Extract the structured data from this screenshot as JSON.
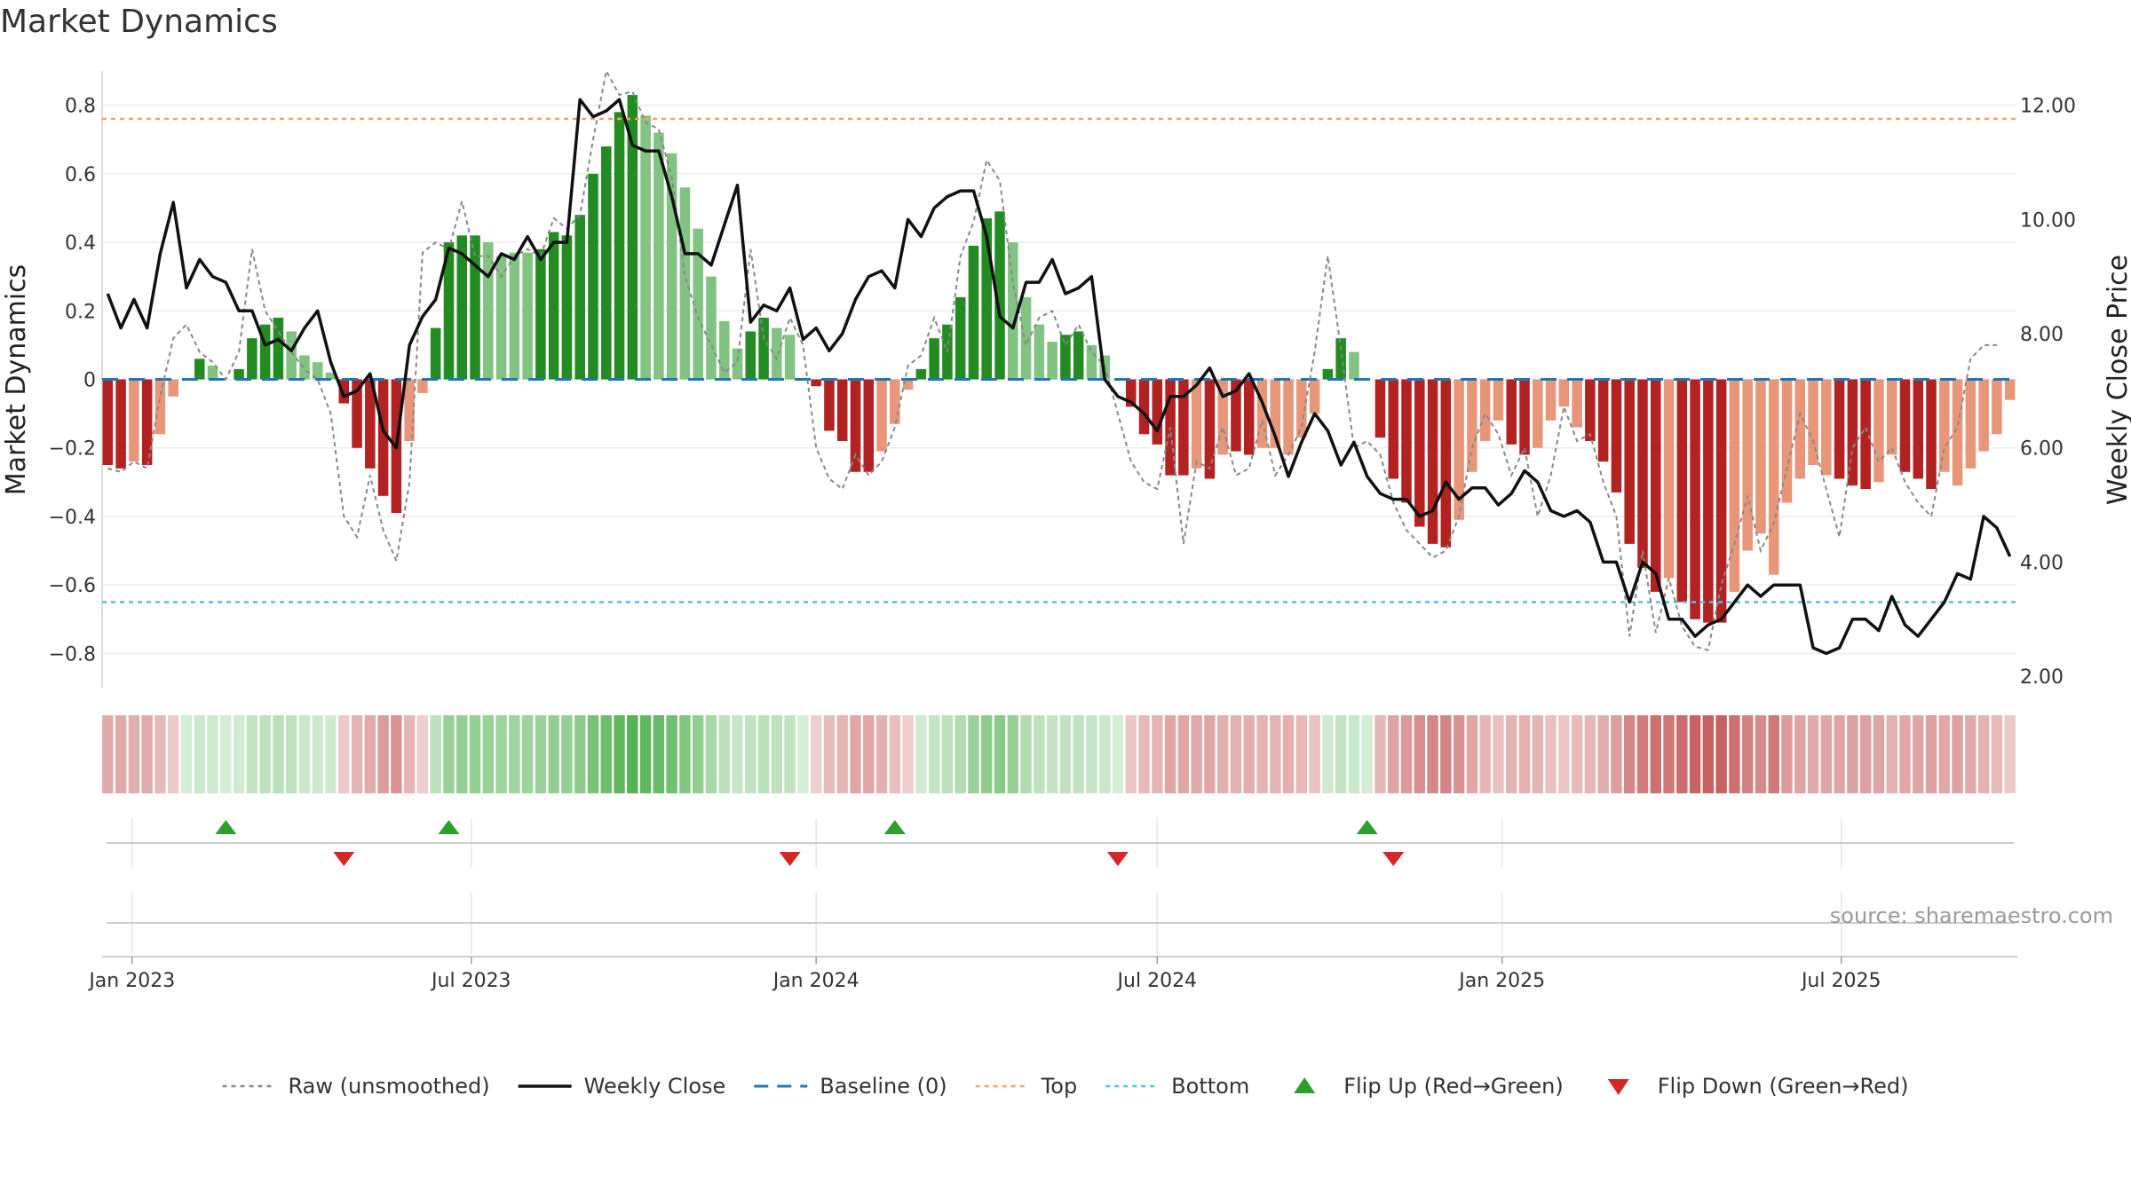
{
  "title": "Market Dynamics",
  "source": "source: sharemaestro.com",
  "colors": {
    "strong_green": "#228b22",
    "light_green": "#82c282",
    "strong_red": "#b22222",
    "light_red": "#e8967a",
    "close": "#111111",
    "raw": "#888888",
    "baseline": "#1f77b4",
    "top": "#f4a261",
    "bottom": "#4fc3e0",
    "flip_up": "#2ca02c",
    "flip_down": "#d62728"
  },
  "chart_data": {
    "type": "bar",
    "title": "Market Dynamics",
    "ylabel": "Market Dynamics",
    "y2label": "Weekly Close Price",
    "ylim": [
      -0.9,
      0.9
    ],
    "y2lim": [
      1.8,
      12.6
    ],
    "y_ticks": [
      -0.8,
      -0.6,
      -0.4,
      -0.2,
      0,
      0.2,
      0.4,
      0.6,
      0.8
    ],
    "y_tick_labels": [
      "−0.8",
      "−0.6",
      "−0.4",
      "−0.2",
      "0",
      "0.2",
      "0.4",
      "0.6",
      "0.8"
    ],
    "y2_ticks": [
      2,
      4,
      6,
      8,
      10,
      12
    ],
    "y2_tick_labels": [
      "2.00",
      "4.00",
      "6.00",
      "8.00",
      "10.00",
      "12.00"
    ],
    "x_ticks": [
      "2023-01-01",
      "2023-07-01",
      "2024-01-01",
      "2024-07-01",
      "2025-01-01",
      "2025-07-01"
    ],
    "x_tick_labels": [
      "Jan 2023",
      "Jul 2023",
      "Jan 2024",
      "Jul 2024",
      "Jan 2025",
      "Jul 2025"
    ],
    "start_date": "2022-12-19",
    "top_level": 0.76,
    "bottom_level": -0.65,
    "grid": true,
    "legend_position": "bottom-center",
    "momentum": [
      -0.25,
      -0.26,
      -0.24,
      -0.25,
      -0.16,
      -0.05,
      0,
      0.06,
      0.04,
      0,
      0.03,
      0.12,
      0.16,
      0.18,
      0.14,
      0.07,
      0.05,
      0.02,
      -0.07,
      -0.2,
      -0.26,
      -0.34,
      -0.39,
      -0.18,
      -0.04,
      0.15,
      0.4,
      0.42,
      0.42,
      0.4,
      0.36,
      0.37,
      0.37,
      0.38,
      0.43,
      0.42,
      0.48,
      0.6,
      0.68,
      0.78,
      0.83,
      0.77,
      0.72,
      0.66,
      0.56,
      0.44,
      0.3,
      0.17,
      0.09,
      0.14,
      0.18,
      0.15,
      0.13,
      0,
      -0.02,
      -0.15,
      -0.18,
      -0.27,
      -0.27,
      -0.21,
      -0.13,
      -0.03,
      0.03,
      0.12,
      0.16,
      0.24,
      0.39,
      0.47,
      0.49,
      0.4,
      0.24,
      0.16,
      0.11,
      0.13,
      0.14,
      0.1,
      0.07,
      0,
      -0.08,
      -0.16,
      -0.19,
      -0.28,
      -0.28,
      -0.26,
      -0.29,
      -0.22,
      -0.21,
      -0.22,
      -0.2,
      -0.2,
      -0.22,
      -0.17,
      -0.1,
      0.03,
      0.12,
      0.08,
      0,
      -0.17,
      -0.29,
      -0.36,
      -0.43,
      -0.48,
      -0.49,
      -0.41,
      -0.27,
      -0.18,
      -0.12,
      -0.19,
      -0.22,
      -0.2,
      -0.12,
      -0.08,
      -0.14,
      -0.18,
      -0.24,
      -0.33,
      -0.48,
      -0.55,
      -0.62,
      -0.58,
      -0.65,
      -0.7,
      -0.71,
      -0.71,
      -0.62,
      -0.5,
      -0.45,
      -0.57,
      -0.36,
      -0.29,
      -0.25,
      -0.28,
      -0.29,
      -0.31,
      -0.32,
      -0.3,
      -0.22,
      -0.27,
      -0.29,
      -0.32,
      -0.27,
      -0.31,
      -0.26,
      -0.21,
      -0.16,
      -0.06
    ],
    "bar_shade": [
      1,
      1,
      0,
      1,
      0,
      0,
      0,
      1,
      0,
      0,
      1,
      1,
      1,
      1,
      0,
      0,
      0,
      0,
      1,
      1,
      1,
      1,
      1,
      0,
      0,
      1,
      1,
      1,
      1,
      0,
      0,
      0,
      0,
      1,
      1,
      1,
      1,
      1,
      1,
      1,
      1,
      0,
      0,
      0,
      0,
      0,
      0,
      0,
      0,
      1,
      1,
      0,
      0,
      0,
      1,
      1,
      1,
      1,
      1,
      0,
      0,
      0,
      1,
      1,
      1,
      1,
      1,
      1,
      1,
      0,
      0,
      0,
      0,
      1,
      1,
      0,
      0,
      0,
      1,
      1,
      1,
      1,
      1,
      0,
      1,
      0,
      1,
      1,
      0,
      0,
      0,
      0,
      0,
      1,
      1,
      0,
      0,
      1,
      1,
      1,
      1,
      1,
      1,
      0,
      0,
      0,
      0,
      1,
      1,
      0,
      0,
      0,
      0,
      1,
      1,
      1,
      1,
      1,
      1,
      0,
      1,
      1,
      1,
      1,
      0,
      0,
      0,
      0,
      0,
      0,
      0,
      0,
      1,
      1,
      1,
      0,
      0,
      1,
      1,
      1,
      0,
      0,
      0,
      0,
      0
    ],
    "raw": [
      -0.26,
      -0.27,
      -0.24,
      -0.26,
      -0.05,
      0.12,
      0.16,
      0.08,
      0.05,
      0,
      0.08,
      0.38,
      0.2,
      0.14,
      0.08,
      0.03,
      0,
      -0.1,
      -0.4,
      -0.46,
      -0.28,
      -0.44,
      -0.53,
      -0.3,
      0.37,
      0.4,
      0.38,
      0.52,
      0.36,
      0.36,
      0.3,
      0.36,
      0.38,
      0.36,
      0.47,
      0.44,
      0.48,
      0.7,
      0.9,
      0.83,
      0.84,
      0.75,
      0.73,
      0.59,
      0.3,
      0.18,
      0.1,
      0.02,
      0.05,
      0.38,
      0.12,
      0.06,
      0.18,
      0.1,
      -0.2,
      -0.29,
      -0.32,
      -0.22,
      -0.28,
      -0.24,
      -0.14,
      0.04,
      0.07,
      0.18,
      0.08,
      0.36,
      0.46,
      0.64,
      0.58,
      0.28,
      0.1,
      0.18,
      0.2,
      0.1,
      0.16,
      0.08,
      0.04,
      -0.1,
      -0.24,
      -0.3,
      -0.32,
      -0.14,
      -0.48,
      -0.24,
      -0.26,
      -0.14,
      -0.28,
      -0.26,
      -0.12,
      -0.28,
      -0.22,
      -0.14,
      0.08,
      0.36,
      0.09,
      -0.2,
      -0.18,
      -0.22,
      -0.36,
      -0.44,
      -0.48,
      -0.52,
      -0.5,
      -0.4,
      -0.2,
      -0.1,
      -0.16,
      -0.28,
      -0.2,
      -0.4,
      -0.28,
      -0.08,
      -0.18,
      -0.16,
      -0.3,
      -0.4,
      -0.75,
      -0.5,
      -0.74,
      -0.58,
      -0.72,
      -0.78,
      -0.79,
      -0.6,
      -0.48,
      -0.34,
      -0.5,
      -0.42,
      -0.26,
      -0.1,
      -0.18,
      -0.32,
      -0.46,
      -0.2,
      -0.14,
      -0.24,
      -0.2,
      -0.3,
      -0.36,
      -0.4,
      -0.2,
      -0.14,
      0.06,
      0.1,
      0.1
    ],
    "weekly_close": [
      8.7,
      8.1,
      8.6,
      8.1,
      9.4,
      10.3,
      8.8,
      9.3,
      9.0,
      8.9,
      8.4,
      8.4,
      7.8,
      7.9,
      7.7,
      8.1,
      8.4,
      7.5,
      6.9,
      7.0,
      7.3,
      6.3,
      6.0,
      7.8,
      8.3,
      8.6,
      9.5,
      9.4,
      9.2,
      9.0,
      9.4,
      9.3,
      9.7,
      9.3,
      9.6,
      9.6,
      12.1,
      11.8,
      11.9,
      12.1,
      11.3,
      11.2,
      11.2,
      10.4,
      9.4,
      9.4,
      9.2,
      9.9,
      10.6,
      8.2,
      8.5,
      8.4,
      8.8,
      7.9,
      8.1,
      7.7,
      8.0,
      8.6,
      9.0,
      9.1,
      8.8,
      10.0,
      9.7,
      10.2,
      10.4,
      10.5,
      10.5,
      9.7,
      8.3,
      8.1,
      8.9,
      8.9,
      9.3,
      8.7,
      8.8,
      9.0,
      7.2,
      6.9,
      6.8,
      6.6,
      6.3,
      6.9,
      6.9,
      7.1,
      7.4,
      6.9,
      7.0,
      7.3,
      6.8,
      6.2,
      5.5,
      6.1,
      6.6,
      6.3,
      5.7,
      6.1,
      5.5,
      5.2,
      5.1,
      5.1,
      4.8,
      4.9,
      5.4,
      5.1,
      5.3,
      5.3,
      5.0,
      5.2,
      5.6,
      5.4,
      4.9,
      4.8,
      4.9,
      4.7,
      4.0,
      4.0,
      3.3,
      4.0,
      3.8,
      3.0,
      3.0,
      2.7,
      2.9,
      3.0,
      3.3,
      3.6,
      3.4,
      3.6,
      3.6,
      3.6,
      2.5,
      2.4,
      2.5,
      3.0,
      3.0,
      2.8,
      3.4,
      2.9,
      2.7,
      3.0,
      3.3,
      3.8,
      3.7,
      4.8,
      4.6,
      4.1
    ],
    "flip_up_dates": [
      "2023-02-20",
      "2023-06-19",
      "2024-02-12",
      "2024-10-21"
    ],
    "flip_down_dates": [
      "2023-04-24",
      "2023-12-18",
      "2024-06-10",
      "2024-11-04"
    ],
    "legend": [
      {
        "label": "Raw (unsmoothed)",
        "kind": "dotted",
        "color": "#888888"
      },
      {
        "label": "Weekly Close",
        "kind": "solid",
        "color": "#111111"
      },
      {
        "label": "Baseline (0)",
        "kind": "dashed",
        "color": "#1f77b4"
      },
      {
        "label": "Top",
        "kind": "dotted",
        "color": "#f4a261"
      },
      {
        "label": "Bottom",
        "kind": "dotted",
        "color": "#4fc3e0"
      },
      {
        "label": "Flip Up (Red→Green)",
        "kind": "up",
        "color": "#2ca02c"
      },
      {
        "label": "Flip Down (Green→Red)",
        "kind": "down",
        "color": "#d62728"
      }
    ]
  }
}
